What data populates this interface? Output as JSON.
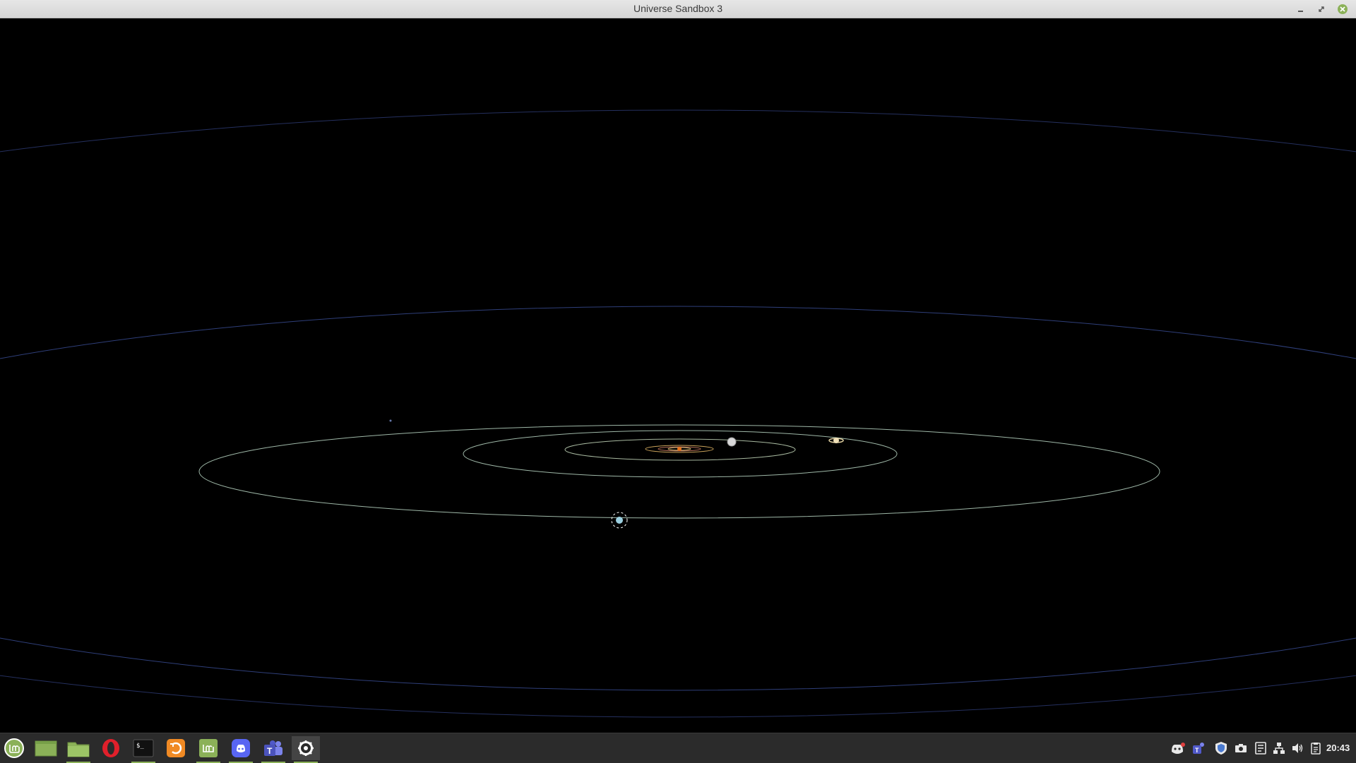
{
  "window": {
    "title": "Universe Sandbox 3",
    "controls": [
      "minimize-icon",
      "maximize-icon",
      "close-icon"
    ]
  },
  "scene": {
    "description_icon": "solar-system-orbits",
    "colors": {
      "inner_orbit": "#c9a25a",
      "planet_orbit": "#9fb8a8",
      "outer_orbit": "#2f3f7a",
      "sun": "#e8731c"
    }
  },
  "taskbar": {
    "apps": [
      {
        "name": "mint-menu",
        "icon": "linux-mint-logo-icon",
        "active": false,
        "running": false
      },
      {
        "name": "show-desktop",
        "icon": "desktop-icon",
        "active": false,
        "running": false
      },
      {
        "name": "files",
        "icon": "folder-icon",
        "active": false,
        "running": true
      },
      {
        "name": "opera",
        "icon": "opera-browser-icon",
        "active": false,
        "running": false
      },
      {
        "name": "terminal",
        "icon": "terminal-icon",
        "active": false,
        "running": true
      },
      {
        "name": "backup",
        "icon": "backup-icon",
        "active": false,
        "running": false
      },
      {
        "name": "mintupdate",
        "icon": "update-manager-icon",
        "active": false,
        "running": true
      },
      {
        "name": "discord",
        "icon": "discord-icon",
        "active": false,
        "running": true
      },
      {
        "name": "teams",
        "icon": "teams-icon",
        "active": false,
        "running": true
      },
      {
        "name": "universe-sandbox",
        "icon": "gear-icon",
        "active": true,
        "running": true
      }
    ],
    "tray": [
      "discord-tray-icon",
      "teams-tray-icon",
      "shield-icon",
      "camera-icon",
      "display-icon",
      "network-icon",
      "volume-icon",
      "clipboard-icon"
    ],
    "clock": "20:43"
  }
}
